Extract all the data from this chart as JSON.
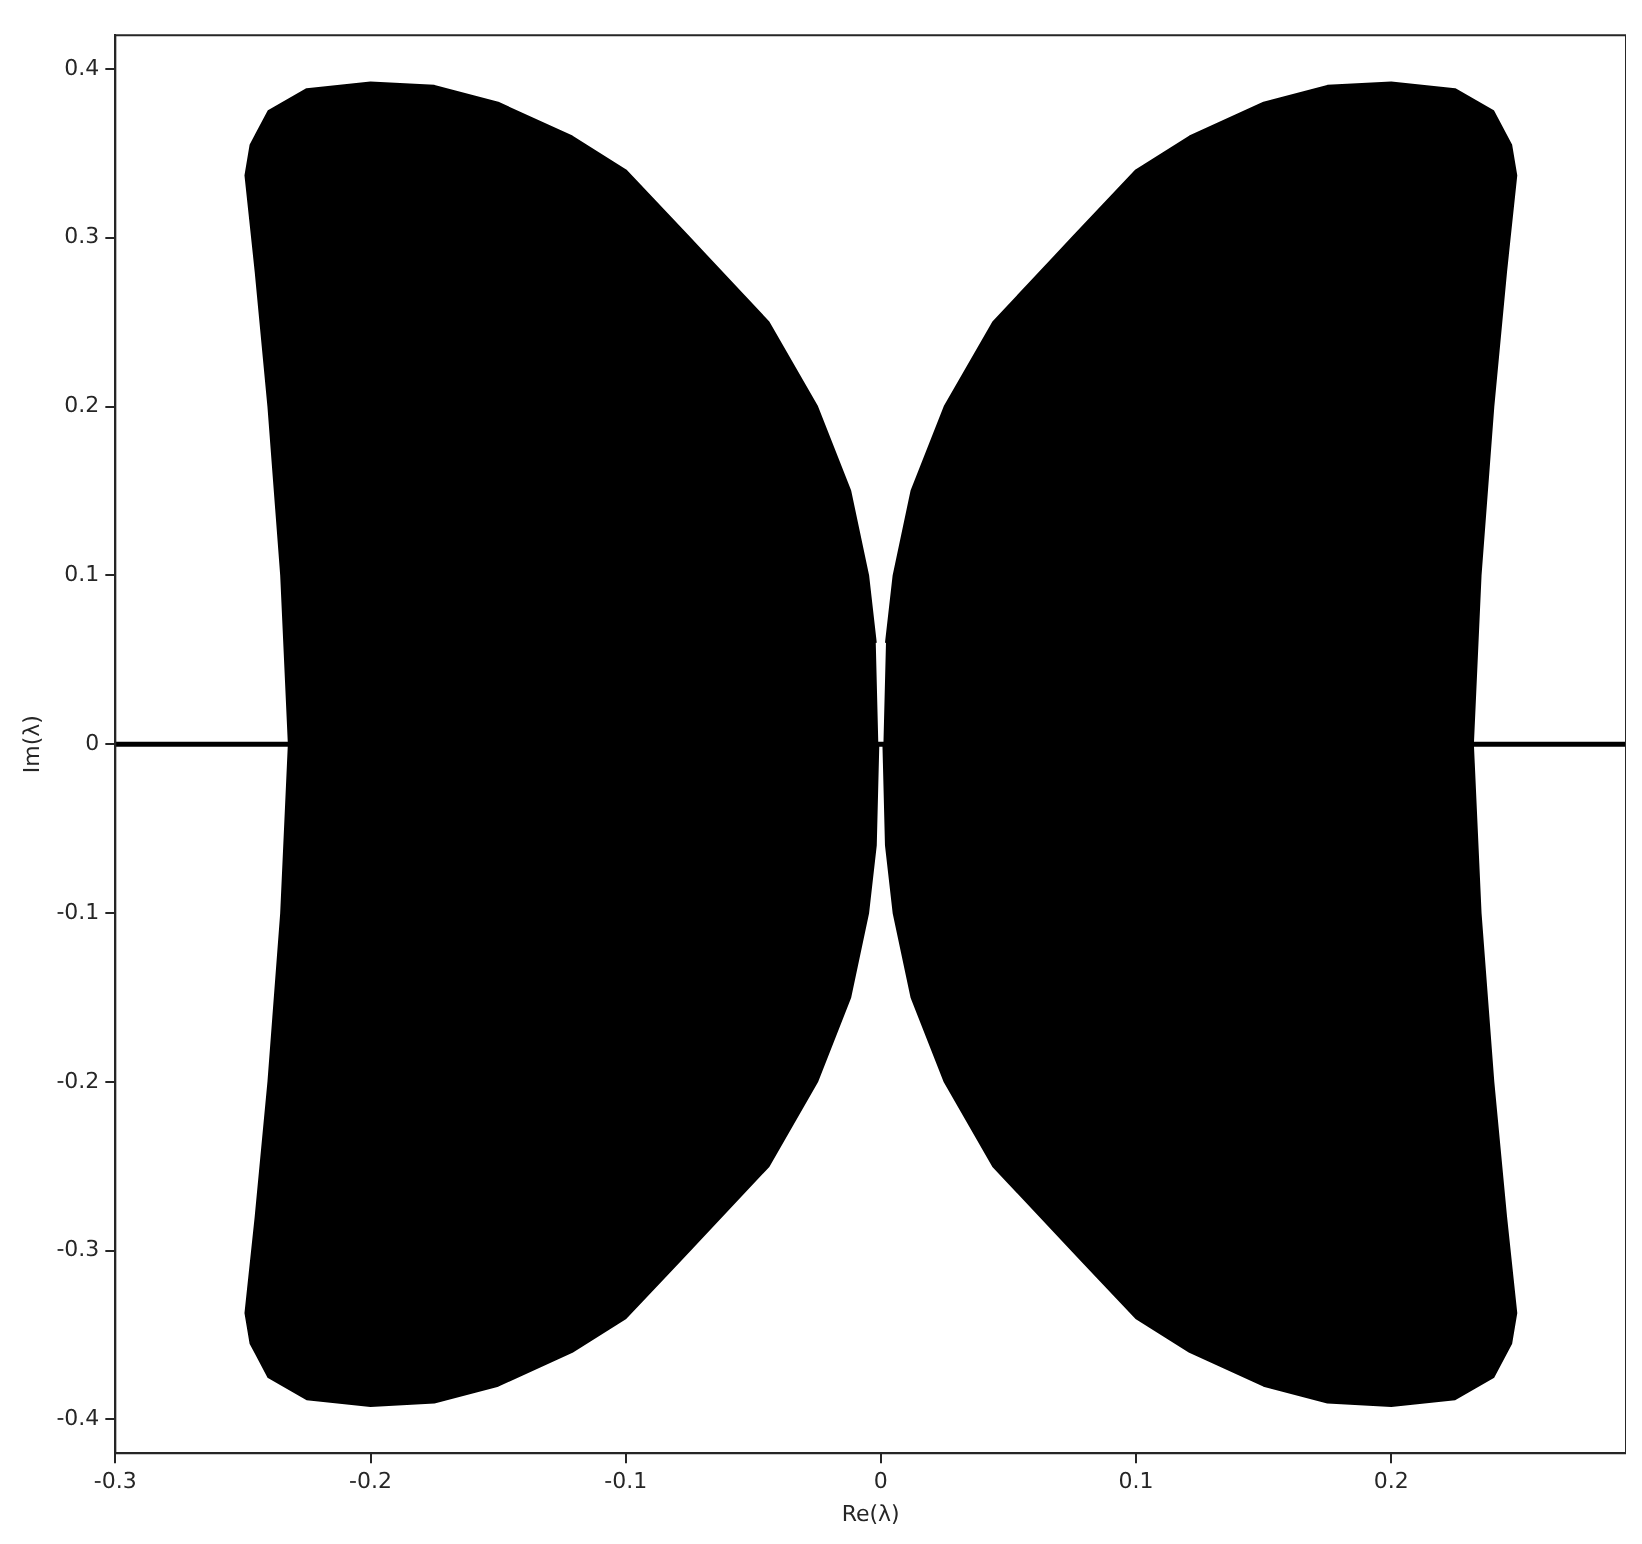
{
  "chart_data": {
    "type": "area",
    "xlabel": "Re(λ)",
    "ylabel": "Im(λ)",
    "xlim": [
      -0.3,
      0.292
    ],
    "ylim": [
      -0.42,
      0.42
    ],
    "xticks": [
      -0.3,
      -0.2,
      -0.1,
      0,
      0.1,
      0.2
    ],
    "yticks": [
      -0.4,
      -0.3,
      -0.2,
      -0.1,
      0,
      0.1,
      0.2,
      0.3,
      0.4
    ],
    "grid": false,
    "legend": false,
    "series": [
      {
        "type": "line",
        "color": "#000000",
        "x": [
          -0.3,
          0.292
        ],
        "values": [
          0,
          0
        ]
      },
      {
        "color": "#000000",
        "x": [
          -0.002,
          -0.005,
          -0.012,
          -0.025,
          -0.044,
          -0.075,
          -0.1,
          -0.121,
          -0.15,
          -0.175,
          -0.2,
          -0.225,
          -0.24,
          -0.247,
          -0.249,
          -0.245,
          -0.24,
          -0.235,
          -0.232,
          -0.235,
          -0.24,
          -0.245,
          -0.249,
          -0.247,
          -0.24,
          -0.225,
          -0.2,
          -0.175,
          -0.15,
          -0.121,
          -0.1,
          -0.075,
          -0.044,
          -0.025,
          -0.012,
          -0.005,
          -0.002,
          -0.001
        ],
        "values": [
          0.06,
          0.1,
          0.15,
          0.2,
          0.25,
          0.3,
          0.34,
          0.36,
          0.38,
          0.39,
          0.392,
          0.388,
          0.375,
          0.355,
          0.337,
          0.28,
          0.2,
          0.1,
          0,
          -0.1,
          -0.2,
          -0.28,
          -0.337,
          -0.355,
          -0.375,
          -0.388,
          -0.392,
          -0.39,
          -0.38,
          -0.36,
          -0.34,
          -0.3,
          -0.25,
          -0.2,
          -0.15,
          -0.1,
          -0.06,
          0
        ]
      },
      {
        "color": "#000000",
        "x": [
          0.002,
          0.005,
          0.012,
          0.025,
          0.044,
          0.075,
          0.1,
          0.121,
          0.15,
          0.175,
          0.2,
          0.225,
          0.24,
          0.247,
          0.249,
          0.245,
          0.24,
          0.235,
          0.232,
          0.235,
          0.24,
          0.245,
          0.249,
          0.247,
          0.24,
          0.225,
          0.2,
          0.175,
          0.15,
          0.121,
          0.1,
          0.075,
          0.044,
          0.025,
          0.012,
          0.005,
          0.002,
          0.001
        ],
        "values": [
          0.06,
          0.1,
          0.15,
          0.2,
          0.25,
          0.3,
          0.34,
          0.36,
          0.38,
          0.39,
          0.392,
          0.388,
          0.375,
          0.355,
          0.337,
          0.28,
          0.2,
          0.1,
          0,
          -0.1,
          -0.2,
          -0.28,
          -0.337,
          -0.355,
          -0.375,
          -0.388,
          -0.392,
          -0.39,
          -0.38,
          -0.36,
          -0.34,
          -0.3,
          -0.25,
          -0.2,
          -0.15,
          -0.1,
          -0.06,
          0
        ]
      }
    ]
  }
}
